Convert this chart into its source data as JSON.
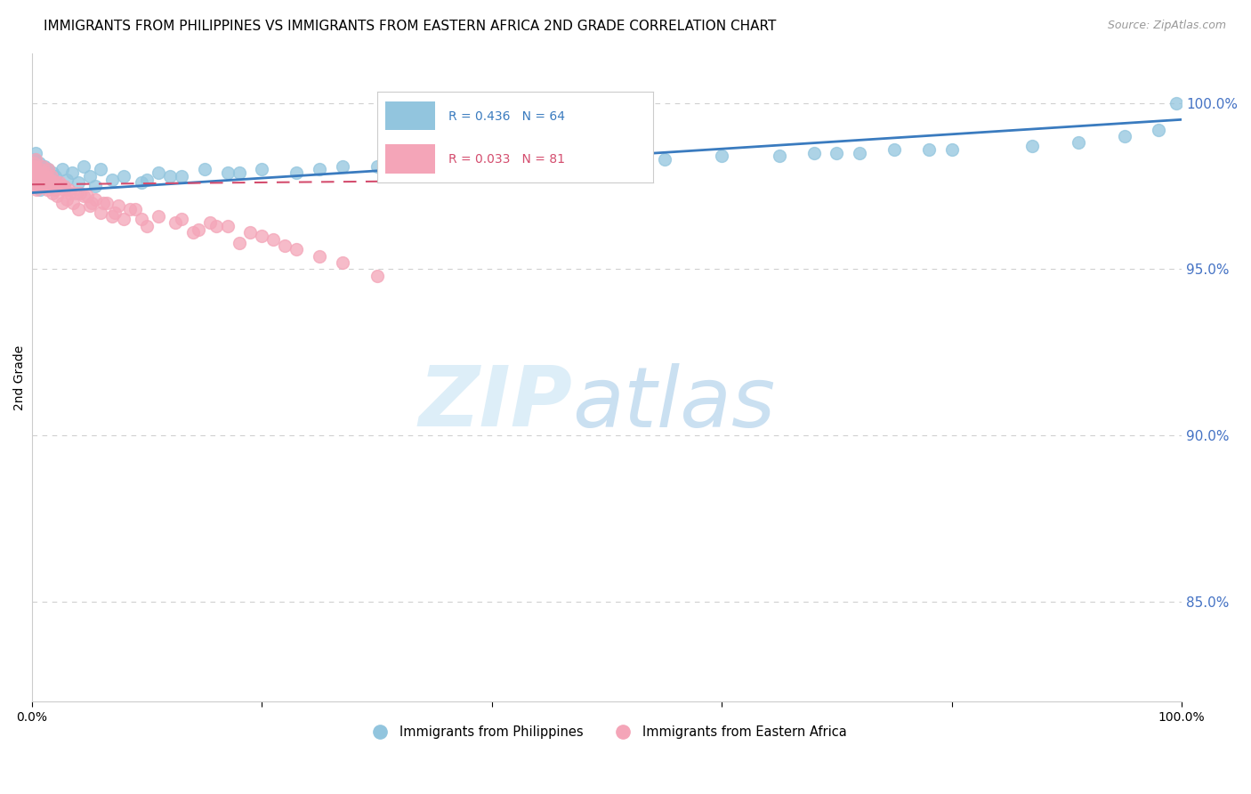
{
  "title": "IMMIGRANTS FROM PHILIPPINES VS IMMIGRANTS FROM EASTERN AFRICA 2ND GRADE CORRELATION CHART",
  "source": "Source: ZipAtlas.com",
  "ylabel_left": "2nd Grade",
  "right_yticks": [
    85.0,
    90.0,
    95.0,
    100.0
  ],
  "legend_blue_r": "0.436",
  "legend_blue_n": "64",
  "legend_pink_r": "0.033",
  "legend_pink_n": "81",
  "blue_color": "#92c5de",
  "pink_color": "#f4a5b8",
  "blue_line_color": "#3a7bbf",
  "pink_line_color": "#d44d6e",
  "xmin": 0.0,
  "xmax": 100.0,
  "ymin": 82.0,
  "ymax": 101.5,
  "blue_slope": 0.022,
  "blue_intercept": 97.3,
  "pink_slope": 0.003,
  "pink_intercept": 97.55,
  "pink_line_xmax": 45.0,
  "blue_x": [
    0.1,
    0.15,
    0.2,
    0.25,
    0.3,
    0.35,
    0.4,
    0.45,
    0.5,
    0.6,
    0.7,
    0.8,
    0.9,
    1.0,
    1.1,
    1.2,
    1.4,
    1.6,
    1.8,
    2.0,
    2.3,
    2.6,
    3.0,
    3.5,
    4.0,
    4.5,
    5.0,
    5.5,
    6.0,
    7.0,
    8.0,
    9.5,
    11.0,
    13.0,
    15.0,
    17.0,
    20.0,
    23.0,
    27.0,
    33.0,
    38.0,
    45.0,
    55.0,
    65.0,
    72.0,
    80.0,
    87.0,
    91.0,
    95.0,
    98.0,
    99.5,
    68.0,
    75.0,
    42.0,
    18.0,
    25.0,
    30.0,
    10.0,
    12.0,
    48.0,
    52.0,
    60.0,
    70.0,
    78.0
  ],
  "blue_y": [
    97.9,
    98.1,
    97.7,
    98.3,
    97.5,
    98.5,
    97.8,
    98.0,
    97.6,
    98.2,
    97.4,
    98.0,
    97.8,
    97.5,
    98.1,
    97.7,
    98.0,
    97.6,
    97.9,
    97.8,
    97.5,
    98.0,
    97.7,
    97.9,
    97.6,
    98.1,
    97.8,
    97.5,
    98.0,
    97.7,
    97.8,
    97.6,
    97.9,
    97.8,
    98.0,
    97.9,
    98.0,
    97.9,
    98.1,
    98.0,
    98.2,
    98.1,
    98.3,
    98.4,
    98.5,
    98.6,
    98.7,
    98.8,
    99.0,
    99.2,
    100.0,
    98.5,
    98.6,
    98.1,
    97.9,
    98.0,
    98.1,
    97.7,
    97.8,
    98.2,
    98.3,
    98.4,
    98.5,
    98.6
  ],
  "pink_x": [
    0.05,
    0.1,
    0.15,
    0.2,
    0.25,
    0.3,
    0.35,
    0.4,
    0.5,
    0.6,
    0.7,
    0.8,
    0.9,
    1.0,
    1.1,
    1.2,
    1.3,
    1.4,
    1.5,
    1.6,
    1.7,
    1.8,
    1.9,
    2.0,
    2.2,
    2.4,
    2.6,
    2.8,
    3.0,
    3.3,
    3.6,
    4.0,
    4.5,
    5.0,
    5.5,
    6.0,
    6.5,
    7.0,
    7.5,
    8.0,
    9.0,
    10.0,
    11.0,
    12.5,
    14.0,
    16.0,
    18.0,
    20.0,
    22.0,
    14.5,
    9.5,
    7.2,
    5.2,
    4.2,
    3.2,
    2.5,
    1.5,
    0.8,
    0.4,
    0.2,
    0.1,
    13.0,
    8.5,
    6.2,
    4.8,
    3.8,
    2.8,
    2.1,
    1.6,
    1.1,
    0.7,
    0.35,
    0.18,
    21.0,
    19.0,
    17.0,
    15.5,
    23.0,
    25.0,
    27.0,
    30.0
  ],
  "pink_y": [
    98.0,
    97.8,
    98.2,
    97.5,
    98.1,
    97.6,
    98.3,
    97.4,
    97.9,
    97.7,
    98.0,
    97.5,
    98.1,
    97.8,
    97.6,
    97.9,
    97.4,
    98.0,
    97.7,
    97.5,
    97.8,
    97.3,
    97.6,
    97.4,
    97.2,
    97.6,
    97.0,
    97.4,
    97.1,
    97.3,
    97.0,
    96.8,
    97.2,
    96.9,
    97.1,
    96.7,
    97.0,
    96.6,
    96.9,
    96.5,
    96.8,
    96.3,
    96.6,
    96.4,
    96.1,
    96.3,
    95.8,
    96.0,
    95.7,
    96.2,
    96.5,
    96.7,
    97.0,
    97.3,
    97.4,
    97.5,
    97.7,
    97.8,
    97.9,
    98.0,
    98.1,
    96.5,
    96.8,
    97.0,
    97.2,
    97.3,
    97.5,
    97.6,
    97.7,
    97.8,
    97.9,
    98.0,
    98.1,
    95.9,
    96.1,
    96.3,
    96.4,
    95.6,
    95.4,
    95.2,
    94.8
  ]
}
